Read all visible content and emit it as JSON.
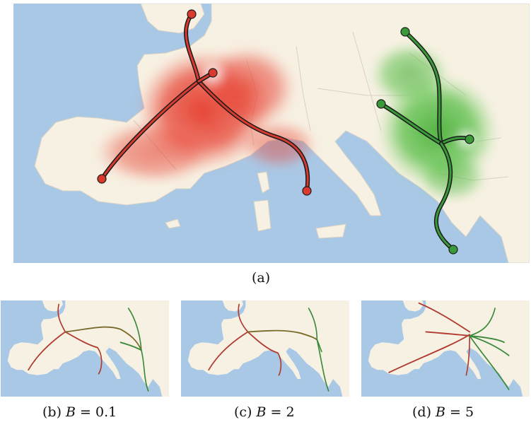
{
  "captions": {
    "a": "(a)",
    "b_prefix": "(b)",
    "b_var": "B",
    "b_eq": " = 0.1",
    "c_prefix": "(c)",
    "c_var": "B",
    "c_eq": " = 2",
    "d_prefix": "(d)",
    "d_var": "B",
    "d_eq": " = 5"
  },
  "colors": {
    "sea": "#a8c8e6",
    "land": "#f7f1e3",
    "border": "#d8d2c4",
    "red_bundle": "#d83a2e",
    "red_density": "#e84a3c",
    "green_bundle": "#3a9a3a",
    "green_density": "#5cc04a",
    "outline": "#1a1a1a"
  }
}
